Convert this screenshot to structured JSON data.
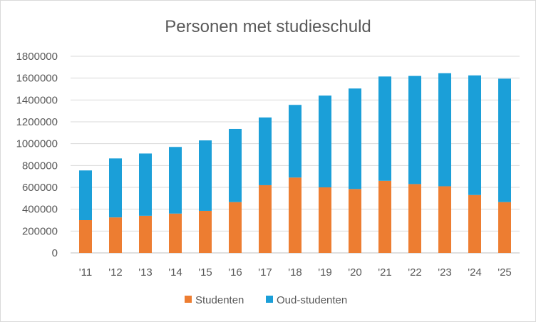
{
  "chart_data": {
    "type": "bar",
    "stacked": true,
    "title": "Personen met studieschuld",
    "xlabel": "",
    "ylabel": "",
    "categories": [
      "'11",
      "'12",
      "'13",
      "'14",
      "'15",
      "'16",
      "'17",
      "'18",
      "'19",
      "'20",
      "'21",
      "'22",
      "'23",
      "'24",
      "'25"
    ],
    "series": [
      {
        "name": "Studenten",
        "color": "#ED7D31",
        "values": [
          300000,
          325000,
          340000,
          360000,
          385000,
          465000,
          620000,
          690000,
          600000,
          585000,
          660000,
          630000,
          610000,
          530000,
          465000
        ]
      },
      {
        "name": "Oud-studenten",
        "color": "#1B9FD8",
        "values": [
          455000,
          540000,
          570000,
          610000,
          645000,
          670000,
          620000,
          665000,
          840000,
          920000,
          955000,
          990000,
          1035000,
          1095000,
          1130000
        ]
      }
    ],
    "ylim": [
      0,
      1800000
    ],
    "yticks": [
      0,
      200000,
      400000,
      600000,
      800000,
      1000000,
      1200000,
      1400000,
      1600000,
      1800000
    ],
    "ytick_labels": [
      "0",
      "200000",
      "400000",
      "600000",
      "800000",
      "1000000",
      "1200000",
      "1400000",
      "1600000",
      "1800000"
    ],
    "grid": true,
    "legend": "bottom"
  }
}
